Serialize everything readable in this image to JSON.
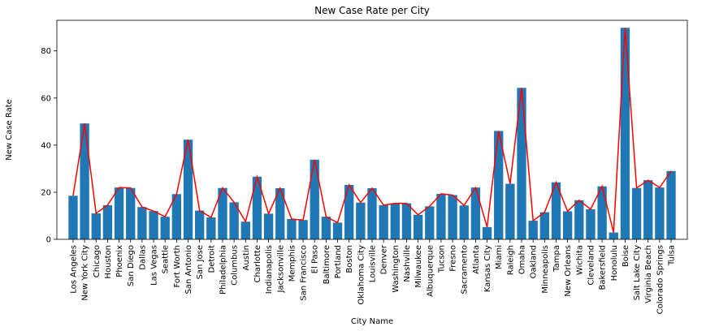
{
  "chart_data": {
    "type": "bar",
    "title": "New Case Rate per City",
    "xlabel": "City Name",
    "ylabel": "New Case Rate",
    "ylim": [
      0,
      93
    ],
    "yticks": [
      0,
      20,
      40,
      60,
      80
    ],
    "grid": false,
    "bar_color": "#1f77b4",
    "line_color": "#ff0000",
    "categories": [
      "Los Angeles",
      "New York City",
      "Chicago",
      "Houston",
      "Phoenix",
      "San Diego",
      "Dallas",
      "Las Vegas",
      "Seattle",
      "Fort Worth",
      "San Antonio",
      "San Jose",
      "Detroit",
      "Philadelphia",
      "Columbus",
      "Austin",
      "Charlotte",
      "Indianapolis",
      "Jacksonville",
      "Memphis",
      "San Francisco",
      "El Paso",
      "Baltimore",
      "Portland",
      "Boston",
      "Oklahoma City",
      "Louisville",
      "Denver",
      "Washington",
      "Nashville",
      "Milwaukee",
      "Albuquerque",
      "Tucson",
      "Fresno",
      "Sacramento",
      "Atlanta",
      "Kansas City",
      "Miami",
      "Raleigh",
      "Omaha",
      "Oakland",
      "Minneapolis",
      "Tampa",
      "New Orleans",
      "Wichita",
      "Cleveland",
      "Bakersfield",
      "Honolulu",
      "Boise",
      "Salt Lake City",
      "Virginia Beach",
      "Colorado Springs",
      "Tulsa"
    ],
    "values": [
      18.5,
      49.2,
      11.0,
      14.5,
      22.0,
      21.8,
      13.7,
      12.0,
      9.6,
      19.2,
      42.3,
      12.2,
      9.3,
      21.8,
      15.7,
      7.5,
      26.6,
      10.9,
      21.7,
      8.6,
      8.2,
      33.8,
      9.6,
      7.1,
      23.1,
      15.6,
      21.7,
      14.5,
      15.3,
      15.3,
      10.4,
      14.0,
      19.3,
      18.8,
      14.4,
      22.0,
      5.2,
      46.0,
      23.6,
      64.3,
      7.9,
      11.5,
      24.2,
      11.9,
      16.6,
      12.8,
      22.5,
      2.9,
      89.8,
      21.8,
      25.1,
      22.0,
      29.0
    ]
  }
}
